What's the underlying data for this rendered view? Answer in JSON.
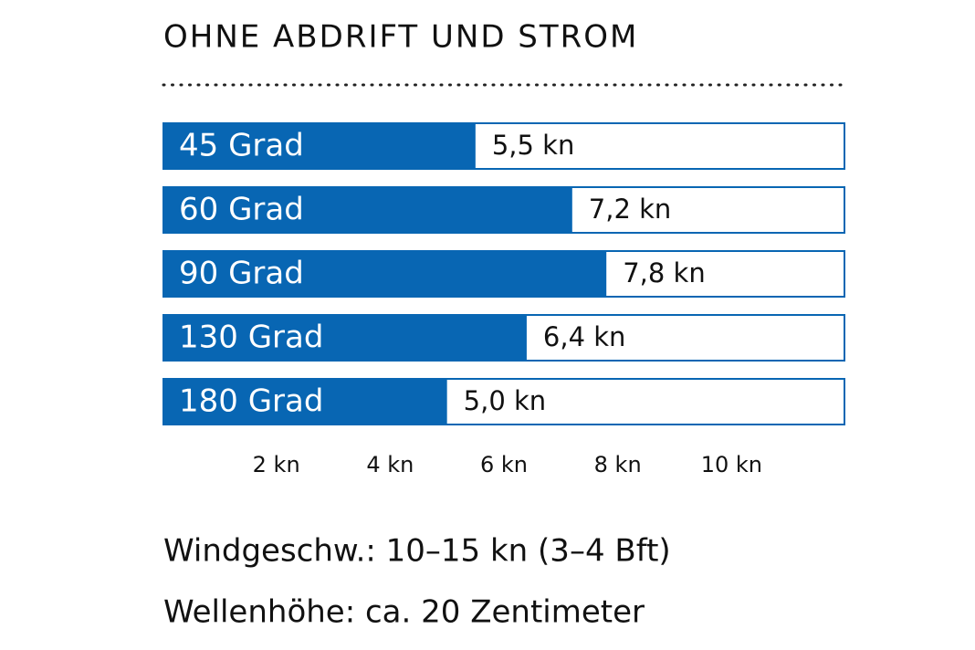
{
  "chart_data": {
    "type": "bar",
    "orientation": "horizontal",
    "title": "OHNE ABDRIFT UND STROM",
    "categories": [
      "45 Grad",
      "60 Grad",
      "90 Grad",
      "130 Grad",
      "180 Grad"
    ],
    "values": [
      5.5,
      7.2,
      7.8,
      6.4,
      5.0
    ],
    "value_labels": [
      "5,5 kn",
      "7,2 kn",
      "7,8 kn",
      "6,4 kn",
      "5,0 kn"
    ],
    "color": "#0866b3",
    "xlim": [
      0,
      12
    ],
    "xticks": [
      {
        "value": 2,
        "label": "2 kn"
      },
      {
        "value": 4,
        "label": "4 kn"
      },
      {
        "value": 6,
        "label": "6 kn"
      },
      {
        "value": 8,
        "label": "8 kn"
      },
      {
        "value": 10,
        "label": "10 kn"
      }
    ],
    "grid": false,
    "annotations": [
      "Windgeschw.: 10–15 kn (3–4 Bft)",
      "Wellenhöhe: ca. 20 Zentimeter"
    ]
  }
}
